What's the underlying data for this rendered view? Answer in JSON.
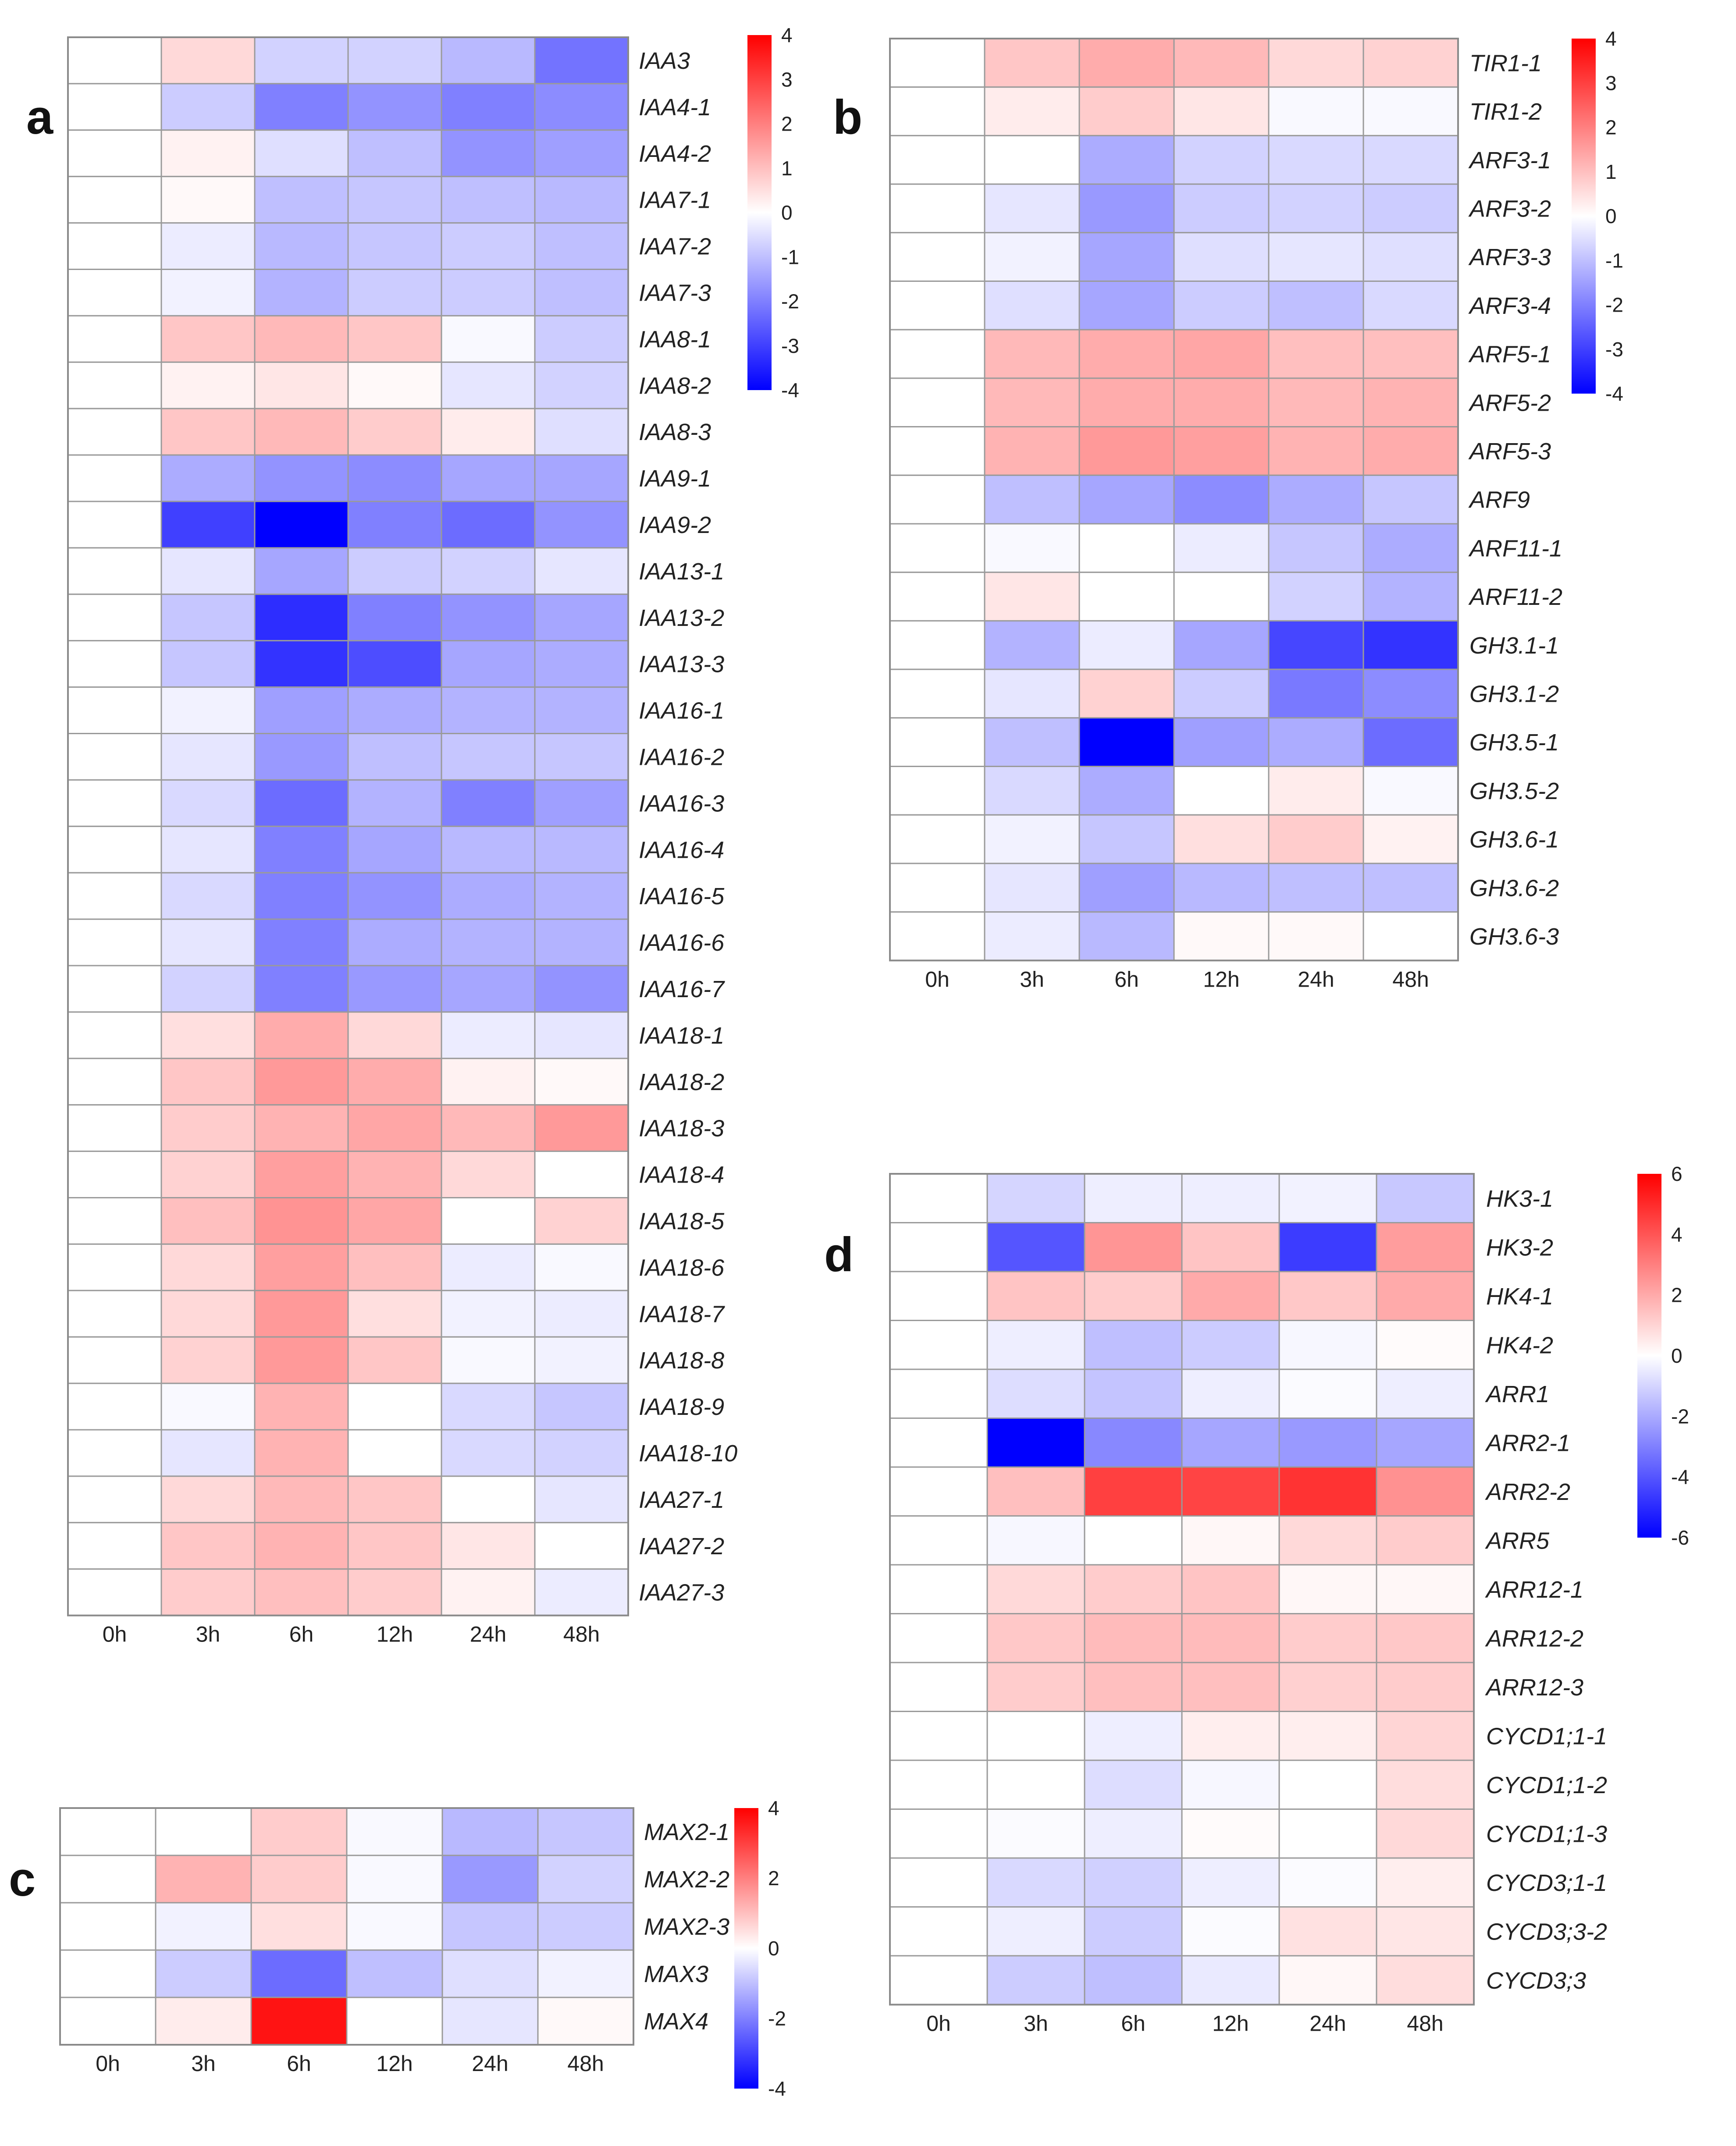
{
  "colors": {
    "low": "#0000ff",
    "mid": "#ffffff",
    "high": "#ff0000",
    "grid": "#9a9a9a"
  },
  "chart_data": [
    {
      "type": "heatmap",
      "panel": "a",
      "columns": [
        "0h",
        "3h",
        "6h",
        "12h",
        "24h",
        "48h"
      ],
      "rows": [
        "IAA3",
        "IAA4-1",
        "IAA4-2",
        "IAA7-1",
        "IAA7-2",
        "IAA7-3",
        "IAA8-1",
        "IAA8-2",
        "IAA8-3",
        "IAA9-1",
        "IAA9-2",
        "IAA13-1",
        "IAA13-2",
        "IAA13-3",
        "IAA16-1",
        "IAA16-2",
        "IAA16-3",
        "IAA16-4",
        "IAA16-5",
        "IAA16-6",
        "IAA16-7",
        "IAA18-1",
        "IAA18-2",
        "IAA18-3",
        "IAA18-4",
        "IAA18-5",
        "IAA18-6",
        "IAA18-7",
        "IAA18-8",
        "IAA18-9",
        "IAA18-10",
        "IAA27-1",
        "IAA27-2",
        "IAA27-3"
      ],
      "values": [
        [
          0,
          0.6,
          -0.7,
          -0.7,
          -1.1,
          -2.2
        ],
        [
          0,
          -0.8,
          -2.0,
          -1.7,
          -2.0,
          -1.8
        ],
        [
          0,
          0.2,
          -0.5,
          -1.0,
          -1.7,
          -1.5
        ],
        [
          0,
          0.1,
          -1.0,
          -0.9,
          -1.0,
          -1.1
        ],
        [
          0,
          -0.3,
          -1.1,
          -0.9,
          -0.8,
          -1.0
        ],
        [
          0,
          -0.2,
          -1.2,
          -0.8,
          -0.8,
          -1.0
        ],
        [
          0,
          0.9,
          1.1,
          0.9,
          -0.1,
          -0.8
        ],
        [
          0,
          0.2,
          0.4,
          0.1,
          -0.4,
          -0.7
        ],
        [
          0,
          0.9,
          1.1,
          0.8,
          0.3,
          -0.5
        ],
        [
          0,
          -1.3,
          -1.7,
          -1.8,
          -1.4,
          -1.4
        ],
        [
          0,
          -3.0,
          -4.0,
          -2.0,
          -2.3,
          -1.7
        ],
        [
          0,
          -0.4,
          -1.4,
          -0.8,
          -0.7,
          -0.4
        ],
        [
          0,
          -0.9,
          -3.3,
          -2.0,
          -1.7,
          -1.4
        ],
        [
          0,
          -0.9,
          -3.2,
          -2.8,
          -1.4,
          -1.3
        ],
        [
          0,
          -0.2,
          -1.5,
          -1.3,
          -1.2,
          -1.2
        ],
        [
          0,
          -0.4,
          -1.6,
          -1.0,
          -0.9,
          -0.9
        ],
        [
          0,
          -0.6,
          -2.3,
          -1.2,
          -2.0,
          -1.5
        ],
        [
          0,
          -0.4,
          -2.0,
          -1.4,
          -1.1,
          -1.1
        ],
        [
          0,
          -0.6,
          -2.0,
          -1.7,
          -1.3,
          -1.2
        ],
        [
          0,
          -0.4,
          -2.0,
          -1.3,
          -1.2,
          -1.2
        ],
        [
          0,
          -0.7,
          -2.0,
          -1.6,
          -1.4,
          -1.7
        ],
        [
          0,
          0.5,
          1.3,
          0.6,
          -0.3,
          -0.4
        ],
        [
          0,
          0.9,
          1.6,
          1.3,
          0.2,
          0.1
        ],
        [
          0,
          0.8,
          1.2,
          1.4,
          1.1,
          1.6
        ],
        [
          0,
          0.7,
          1.5,
          1.2,
          0.6,
          0.0
        ],
        [
          0,
          1.0,
          1.7,
          1.4,
          0.0,
          0.7
        ],
        [
          0,
          0.6,
          1.5,
          1.0,
          -0.3,
          -0.1
        ],
        [
          0,
          0.6,
          1.6,
          0.5,
          -0.2,
          -0.3
        ],
        [
          0,
          0.7,
          1.6,
          0.9,
          -0.1,
          -0.2
        ],
        [
          0,
          -0.1,
          1.2,
          0.0,
          -0.6,
          -0.9
        ],
        [
          0,
          -0.4,
          1.2,
          0.0,
          -0.6,
          -0.7
        ],
        [
          0,
          0.6,
          1.1,
          0.9,
          0.0,
          -0.4
        ],
        [
          0,
          0.9,
          1.2,
          0.9,
          0.4,
          0.0
        ],
        [
          0,
          0.8,
          1.0,
          0.8,
          0.2,
          -0.3
        ]
      ],
      "color_range": [
        -4,
        4
      ],
      "colorbar_ticks": [
        "4",
        "3",
        "2",
        "1",
        "0",
        "-1",
        "-2",
        "-3",
        "-4"
      ],
      "title": "",
      "xlabel": "",
      "ylabel": ""
    },
    {
      "type": "heatmap",
      "panel": "b",
      "columns": [
        "0h",
        "3h",
        "6h",
        "12h",
        "24h",
        "48h"
      ],
      "rows": [
        "TIR1-1",
        "TIR1-2",
        "ARF3-1",
        "ARF3-2",
        "ARF3-3",
        "ARF3-4",
        "ARF5-1",
        "ARF5-2",
        "ARF5-3",
        "ARF9",
        "ARF11-1",
        "ARF11-2",
        "GH3.1-1",
        "GH3.1-2",
        "GH3.5-1",
        "GH3.5-2",
        "GH3.6-1",
        "GH3.6-2",
        "GH3.6-3"
      ],
      "values": [
        [
          0,
          0.9,
          1.3,
          1.1,
          0.6,
          0.7
        ],
        [
          0,
          0.3,
          0.8,
          0.4,
          -0.1,
          -0.1
        ],
        [
          0,
          0.0,
          -1.3,
          -0.7,
          -0.6,
          -0.6
        ],
        [
          0,
          -0.4,
          -1.6,
          -0.8,
          -0.7,
          -0.8
        ],
        [
          0,
          -0.2,
          -1.4,
          -0.5,
          -0.4,
          -0.5
        ],
        [
          0,
          -0.5,
          -1.4,
          -0.8,
          -1.0,
          -0.6
        ],
        [
          0,
          1.1,
          1.3,
          1.4,
          1.0,
          1.0
        ],
        [
          0,
          1.1,
          1.3,
          1.3,
          1.1,
          1.2
        ],
        [
          0,
          1.2,
          1.6,
          1.5,
          1.2,
          1.3
        ],
        [
          0,
          -1.0,
          -1.4,
          -1.8,
          -1.3,
          -0.9
        ],
        [
          0,
          -0.1,
          0.0,
          -0.3,
          -0.9,
          -1.3
        ],
        [
          0,
          0.4,
          0.0,
          0.0,
          -0.7,
          -1.2
        ],
        [
          0,
          -1.2,
          -0.3,
          -1.4,
          -2.9,
          -3.2
        ],
        [
          0,
          -0.4,
          0.7,
          -0.8,
          -2.1,
          -1.8
        ],
        [
          0,
          -1.0,
          -4.0,
          -1.5,
          -1.3,
          -2.3
        ],
        [
          0,
          -0.6,
          -1.3,
          0.0,
          0.3,
          -0.1
        ],
        [
          0,
          -0.2,
          -0.9,
          0.5,
          0.8,
          0.2
        ],
        [
          0,
          -0.4,
          -1.5,
          -1.1,
          -1.0,
          -1.0
        ],
        [
          0,
          -0.3,
          -1.1,
          0.1,
          0.1,
          0.0
        ]
      ],
      "color_range": [
        -4,
        4
      ],
      "colorbar_ticks": [
        "4",
        "3",
        "2",
        "1",
        "0",
        "-1",
        "-2",
        "-3",
        "-4"
      ],
      "title": "",
      "xlabel": "",
      "ylabel": ""
    },
    {
      "type": "heatmap",
      "panel": "c",
      "columns": [
        "0h",
        "3h",
        "6h",
        "12h",
        "24h",
        "48h"
      ],
      "rows": [
        "MAX2-1",
        "MAX2-2",
        "MAX2-3",
        "MAX3",
        "MAX4"
      ],
      "values": [
        [
          0,
          0.0,
          0.8,
          -0.1,
          -1.1,
          -0.9
        ],
        [
          0,
          1.2,
          0.8,
          -0.1,
          -1.6,
          -0.7
        ],
        [
          0,
          -0.2,
          0.5,
          -0.1,
          -0.9,
          -0.8
        ],
        [
          0,
          -0.8,
          -2.3,
          -1.0,
          -0.5,
          -0.2
        ],
        [
          0,
          0.3,
          3.7,
          0.0,
          -0.4,
          0.1
        ]
      ],
      "color_range": [
        -4,
        4
      ],
      "colorbar_ticks": [
        "4",
        "2",
        "0",
        "-2",
        "-4"
      ],
      "title": "",
      "xlabel": "",
      "ylabel": ""
    },
    {
      "type": "heatmap",
      "panel": "d",
      "columns": [
        "0h",
        "3h",
        "6h",
        "12h",
        "24h",
        "48h"
      ],
      "rows": [
        "HK3-1",
        "HK3-2",
        "HK4-1",
        "HK4-2",
        "ARR1",
        "ARR2-1",
        "ARR2-2",
        "ARR5",
        "ARR12-1",
        "ARR12-2",
        "ARR12-3",
        "CYCD1;1-1",
        "CYCD1;1-2",
        "CYCD1;1-3",
        "CYCD3;1-1",
        "CYCD3;3-2",
        "CYCD3;3"
      ],
      "values": [
        [
          0,
          -1.0,
          -0.4,
          -0.4,
          -0.3,
          -1.3
        ],
        [
          0,
          -4.0,
          2.5,
          1.4,
          -4.6,
          2.3
        ],
        [
          0,
          1.4,
          1.2,
          2.0,
          1.3,
          2.0
        ],
        [
          0,
          -0.4,
          -1.5,
          -1.2,
          -0.2,
          0.1
        ],
        [
          0,
          -0.8,
          -1.4,
          -0.4,
          -0.1,
          -0.4
        ],
        [
          0,
          -6.0,
          -2.8,
          -2.1,
          -2.4,
          -2.1
        ],
        [
          0,
          1.5,
          4.5,
          4.4,
          4.8,
          2.6
        ],
        [
          0,
          -0.2,
          0.0,
          0.2,
          0.9,
          1.2
        ],
        [
          0,
          0.9,
          1.2,
          1.4,
          0.2,
          0.2
        ],
        [
          0,
          1.3,
          1.6,
          1.6,
          1.2,
          1.3
        ],
        [
          0,
          1.2,
          1.5,
          1.5,
          1.1,
          1.2
        ],
        [
          0,
          0.0,
          -0.4,
          0.4,
          0.4,
          1.0
        ],
        [
          0,
          0.0,
          -0.8,
          -0.2,
          0.0,
          0.8
        ],
        [
          0,
          -0.1,
          -0.4,
          0.1,
          0.0,
          0.9
        ],
        [
          0,
          -0.9,
          -1.1,
          -0.4,
          -0.1,
          0.4
        ],
        [
          0,
          -0.4,
          -1.2,
          -0.1,
          0.7,
          0.6
        ],
        [
          0,
          -1.2,
          -1.5,
          -0.5,
          0.2,
          0.8
        ]
      ],
      "color_range": [
        -6,
        6
      ],
      "colorbar_ticks": [
        "6",
        "4",
        "2",
        "0",
        "-2",
        "-4",
        "-6"
      ],
      "title": "",
      "xlabel": "",
      "ylabel": ""
    }
  ],
  "panel_labels": [
    "a",
    "b",
    "c",
    "d"
  ]
}
